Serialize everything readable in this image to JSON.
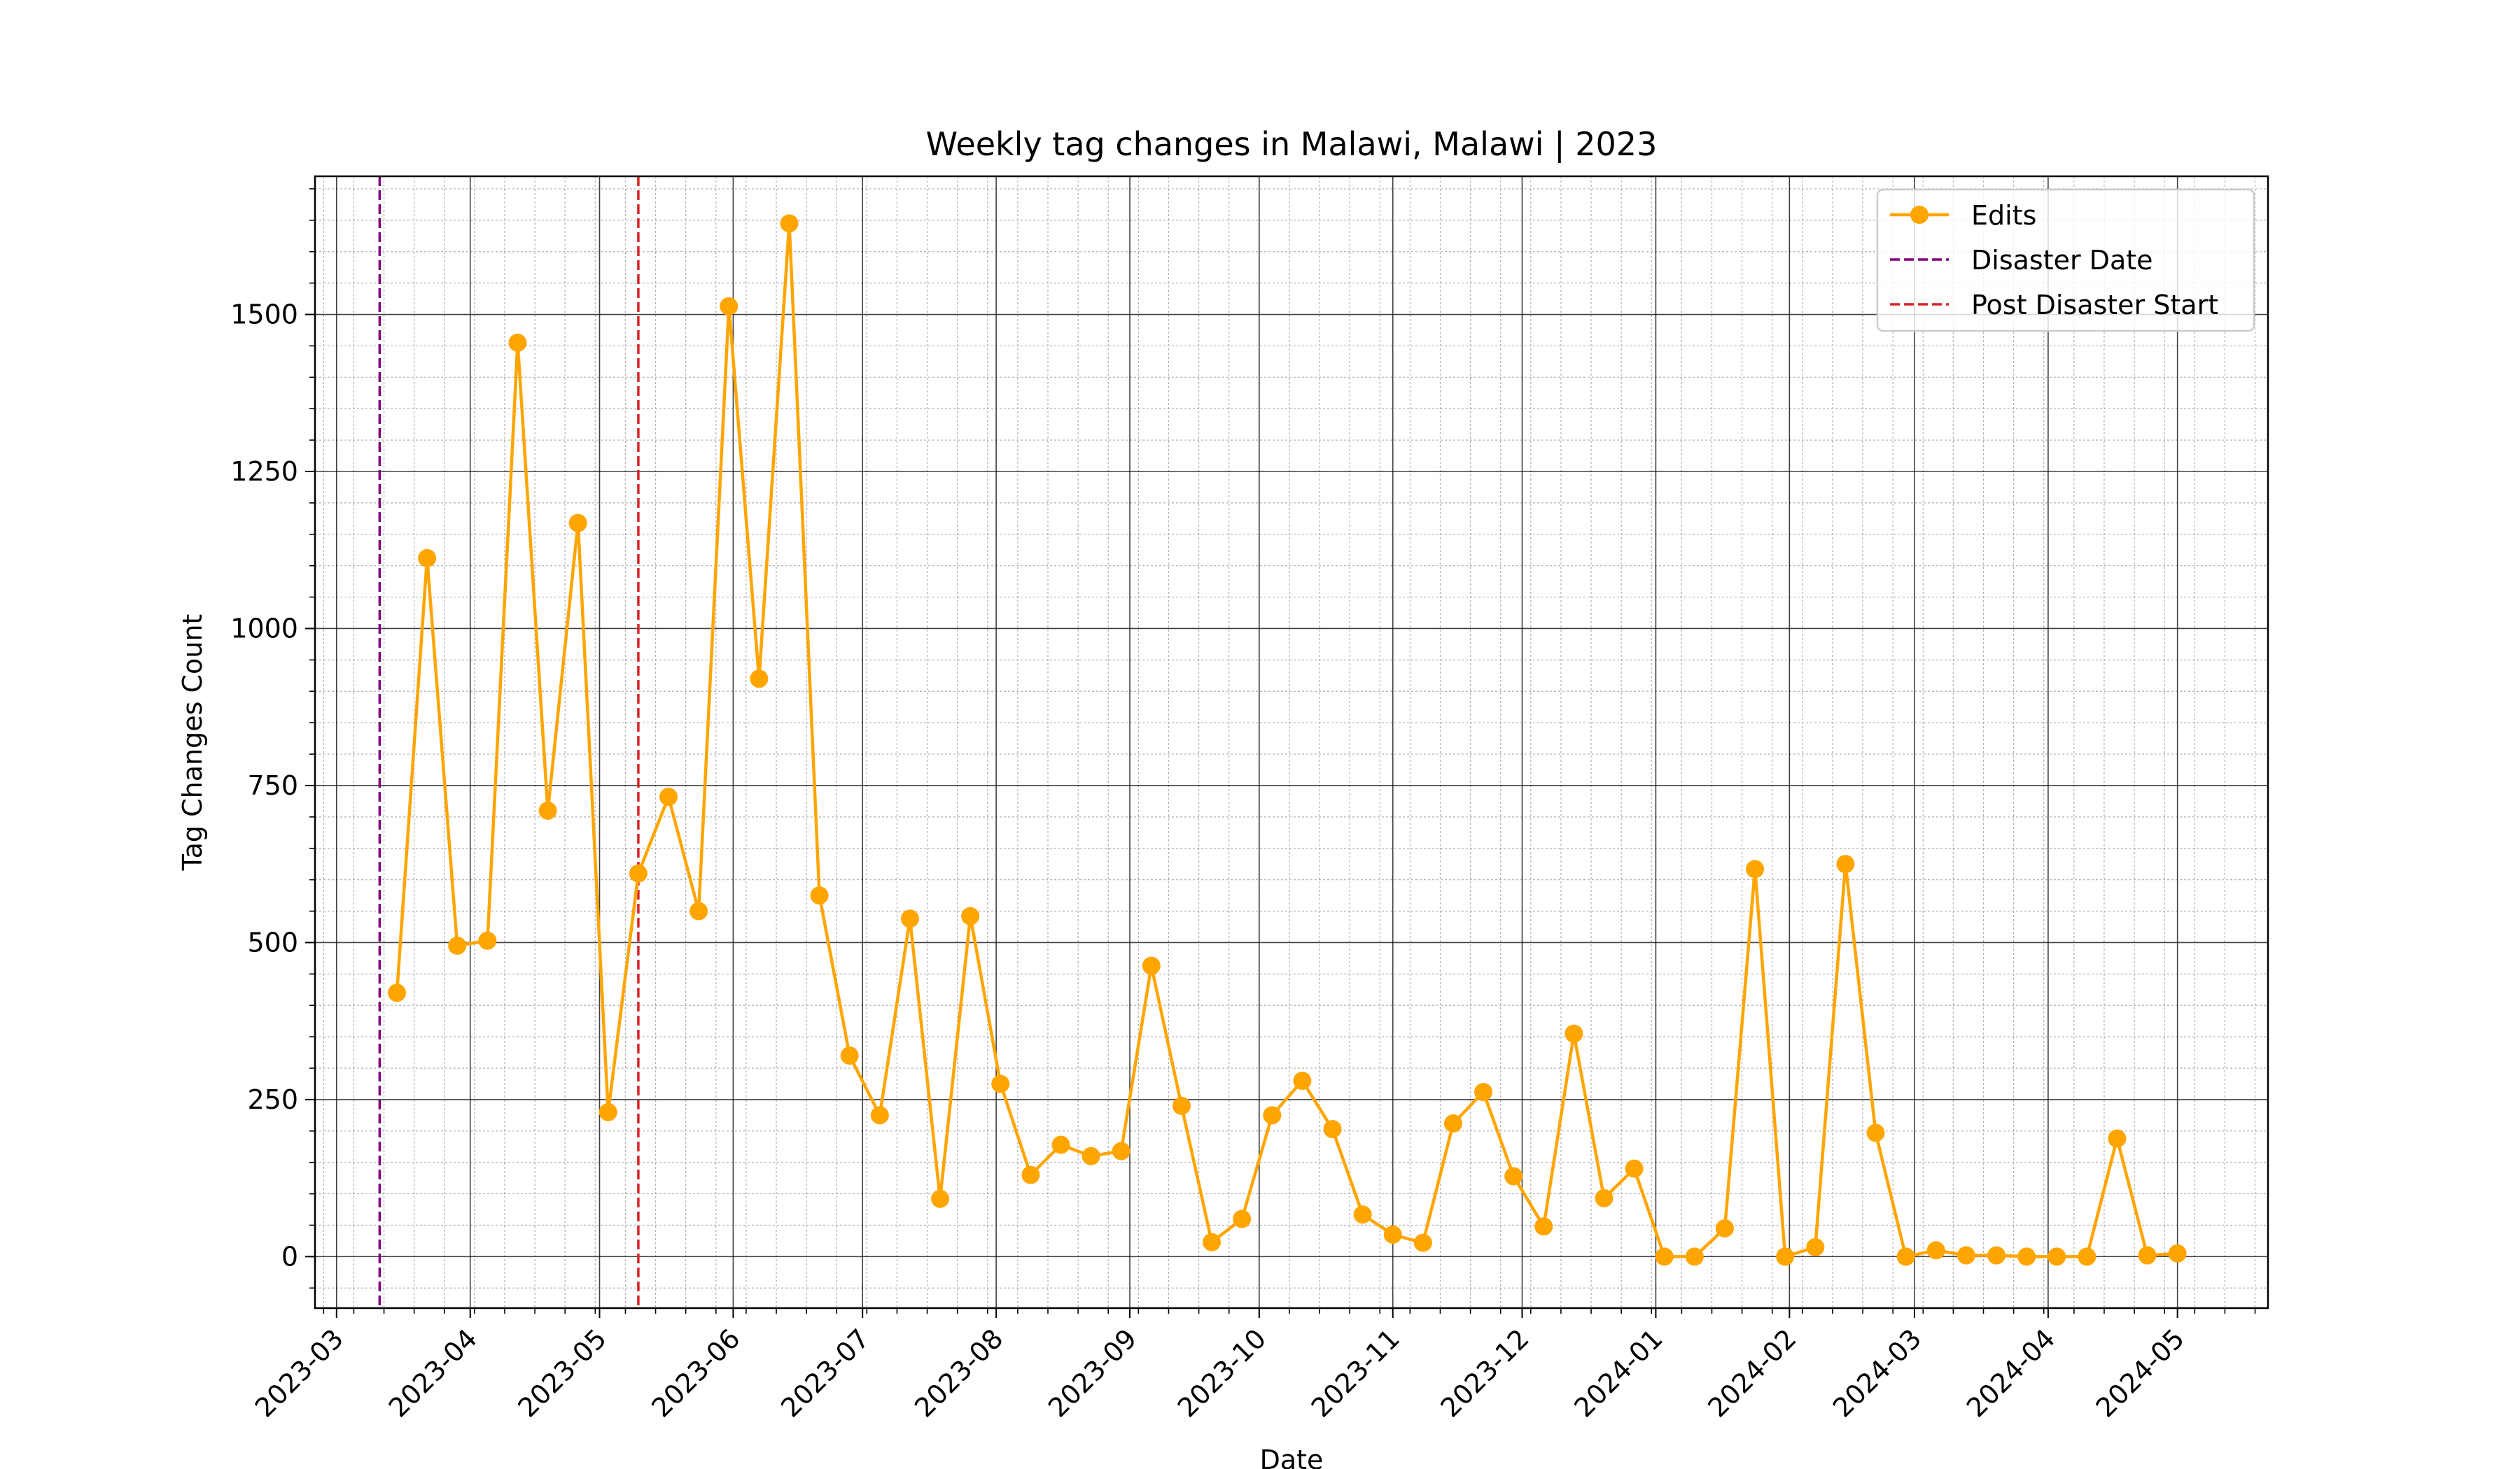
{
  "chart_data": {
    "type": "line",
    "title": "Weekly tag changes in Malawi, Malawi | 2023",
    "xlabel": "Date",
    "ylabel": "Tag Changes Count",
    "x_range": [
      "2023-02-24",
      "2024-05-22"
    ],
    "ylim": [
      -82,
      1720
    ],
    "x_tick_labels": [
      "2023-03",
      "2023-04",
      "2023-05",
      "2023-06",
      "2023-07",
      "2023-08",
      "2023-09",
      "2023-10",
      "2023-11",
      "2023-12",
      "2024-01",
      "2024-02",
      "2024-03",
      "2024-04",
      "2024-05"
    ],
    "y_ticks": [
      0,
      250,
      500,
      750,
      1000,
      1250,
      1500
    ],
    "y_tick_labels": [
      "0",
      "250",
      "500",
      "750",
      "1000",
      "1250",
      "1500"
    ],
    "grid": true,
    "legend_position": "top-right",
    "series": [
      {
        "name": "Edits",
        "color": "#ffa500",
        "marker": "circle",
        "x": [
          "2023-03-15",
          "2023-03-22",
          "2023-03-29",
          "2023-04-05",
          "2023-04-12",
          "2023-04-19",
          "2023-04-26",
          "2023-05-03",
          "2023-05-10",
          "2023-05-17",
          "2023-05-24",
          "2023-05-31",
          "2023-06-07",
          "2023-06-14",
          "2023-06-21",
          "2023-06-28",
          "2023-07-05",
          "2023-07-12",
          "2023-07-19",
          "2023-07-26",
          "2023-08-02",
          "2023-08-09",
          "2023-08-16",
          "2023-08-23",
          "2023-08-30",
          "2023-09-06",
          "2023-09-13",
          "2023-09-20",
          "2023-09-27",
          "2023-10-04",
          "2023-10-11",
          "2023-10-18",
          "2023-10-25",
          "2023-11-01",
          "2023-11-08",
          "2023-11-15",
          "2023-11-22",
          "2023-11-29",
          "2023-12-06",
          "2023-12-13",
          "2023-12-20",
          "2023-12-27",
          "2024-01-03",
          "2024-01-10",
          "2024-01-17",
          "2024-01-24",
          "2024-01-31",
          "2024-02-07",
          "2024-02-14",
          "2024-02-21",
          "2024-02-28",
          "2024-03-06",
          "2024-03-13",
          "2024-03-20",
          "2024-03-27",
          "2024-04-03",
          "2024-04-10",
          "2024-04-17",
          "2024-04-24",
          "2024-05-01"
        ],
        "y": [
          420,
          1112,
          495,
          503,
          1455,
          710,
          1168,
          230,
          610,
          732,
          550,
          1513,
          920,
          1645,
          575,
          320,
          225,
          538,
          92,
          542,
          275,
          130,
          178,
          160,
          168,
          463,
          240,
          23,
          60,
          225,
          280,
          203,
          67,
          35,
          22,
          212,
          262,
          128,
          48,
          355,
          93,
          140,
          0,
          0,
          45,
          617,
          0,
          15,
          625,
          197,
          0,
          10,
          2,
          2,
          0,
          0,
          0,
          188,
          2,
          5
        ]
      }
    ],
    "reference_lines": [
      {
        "name": "Disaster Date",
        "x": "2023-03-11",
        "color": "#800080",
        "style": "dashed"
      },
      {
        "name": "Post Disaster Start",
        "x": "2023-05-10",
        "color": "#d62728",
        "style": "dashed"
      }
    ]
  }
}
